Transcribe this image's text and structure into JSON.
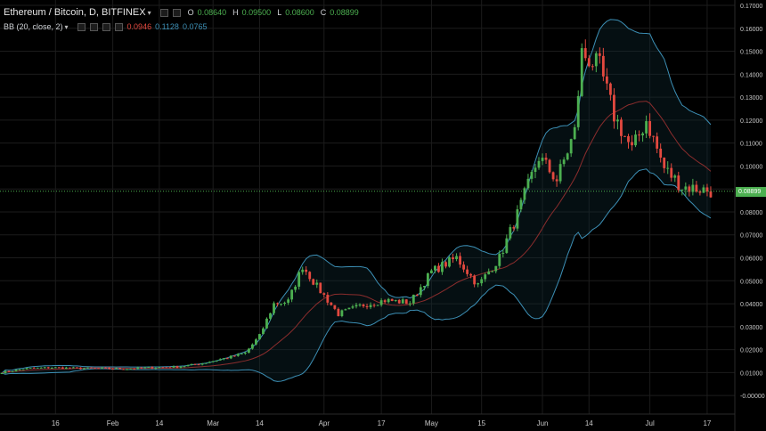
{
  "header": {
    "symbol": "Ethereum / Bitcoin, D, BITFINEX",
    "ohlc": [
      {
        "label": "O",
        "value": "0.08640"
      },
      {
        "label": "H",
        "value": "0.09500"
      },
      {
        "label": "L",
        "value": "0.08600"
      },
      {
        "label": "C",
        "value": "0.08899"
      }
    ]
  },
  "indicator": {
    "name": "BB (20, close, 2)",
    "values": [
      "0.0946",
      "0.1128",
      "0.0765"
    ]
  },
  "price_tag": "0.08899",
  "colors": {
    "up": "#4caf50",
    "down": "#e3493f",
    "band": "#3c8fb5",
    "basis": "#8b2d2d",
    "grid": "#1c1c1c",
    "background": "#000000"
  },
  "icons": [
    "caret-down-icon",
    "settings-icon",
    "eye-icon",
    "close-icon"
  ],
  "chart_data": {
    "type": "candlestick",
    "ylim": [
      -0.005,
      0.17
    ],
    "y_ticks": [
      "0.17000",
      "0.16000",
      "0.15000",
      "0.14000",
      "0.13000",
      "0.12000",
      "0.11000",
      "0.10000",
      "0.09000",
      "0.08000",
      "0.07000",
      "0.06000",
      "0.05000",
      "0.04000",
      "0.03000",
      "0.02000",
      "0.01000",
      "-0.00000"
    ],
    "y_tick_values": [
      0.17,
      0.16,
      0.15,
      0.14,
      0.13,
      0.12,
      0.11,
      0.1,
      0.09,
      0.08,
      0.07,
      0.06,
      0.05,
      0.04,
      0.03,
      0.02,
      0.01,
      0.0
    ],
    "x_ticks": [
      "16",
      "Feb",
      "14",
      "Mar",
      "14",
      "Apr",
      "17",
      "May",
      "15",
      "Jun",
      "14",
      "Jul",
      "17"
    ],
    "x_tick_dates": [
      "2017-01-16",
      "2017-02-01",
      "2017-02-14",
      "2017-03-01",
      "2017-03-14",
      "2017-04-01",
      "2017-04-17",
      "2017-05-01",
      "2017-05-15",
      "2017-06-01",
      "2017-06-14",
      "2017-07-01",
      "2017-07-17"
    ],
    "current_price": 0.08899,
    "candles": [
      {
        "date": "2017-01-01",
        "close": 0.0101
      },
      {
        "date": "2017-01-08",
        "close": 0.0118
      },
      {
        "date": "2017-01-15",
        "close": 0.0122
      },
      {
        "date": "2017-01-22",
        "close": 0.0119
      },
      {
        "date": "2017-01-29",
        "close": 0.0118
      },
      {
        "date": "2017-02-05",
        "close": 0.0116
      },
      {
        "date": "2017-02-12",
        "close": 0.0122
      },
      {
        "date": "2017-02-19",
        "close": 0.0125
      },
      {
        "date": "2017-02-26",
        "close": 0.014
      },
      {
        "date": "2017-03-05",
        "close": 0.0165
      },
      {
        "date": "2017-03-10",
        "close": 0.0185
      },
      {
        "date": "2017-03-14",
        "close": 0.026
      },
      {
        "date": "2017-03-18",
        "close": 0.04
      },
      {
        "date": "2017-03-22",
        "close": 0.041
      },
      {
        "date": "2017-03-26",
        "close": 0.0565
      },
      {
        "date": "2017-03-30",
        "close": 0.0475
      },
      {
        "date": "2017-04-05",
        "close": 0.0355
      },
      {
        "date": "2017-04-12",
        "close": 0.0395
      },
      {
        "date": "2017-04-18",
        "close": 0.0415
      },
      {
        "date": "2017-04-25",
        "close": 0.0405
      },
      {
        "date": "2017-05-01",
        "close": 0.054
      },
      {
        "date": "2017-05-08",
        "close": 0.06
      },
      {
        "date": "2017-05-14",
        "close": 0.048
      },
      {
        "date": "2017-05-20",
        "close": 0.06
      },
      {
        "date": "2017-05-25",
        "close": 0.079
      },
      {
        "date": "2017-05-31",
        "close": 0.104
      },
      {
        "date": "2017-06-05",
        "close": 0.094
      },
      {
        "date": "2017-06-10",
        "close": 0.115
      },
      {
        "date": "2017-06-12",
        "close": 0.149
      },
      {
        "date": "2017-06-17",
        "close": 0.143
      },
      {
        "date": "2017-06-21",
        "close": 0.122
      },
      {
        "date": "2017-06-26",
        "close": 0.107
      },
      {
        "date": "2017-06-30",
        "close": 0.12
      },
      {
        "date": "2017-07-05",
        "close": 0.099
      },
      {
        "date": "2017-07-10",
        "close": 0.091
      },
      {
        "date": "2017-07-15",
        "close": 0.09
      },
      {
        "date": "2017-07-18",
        "close": 0.089
      }
    ]
  }
}
